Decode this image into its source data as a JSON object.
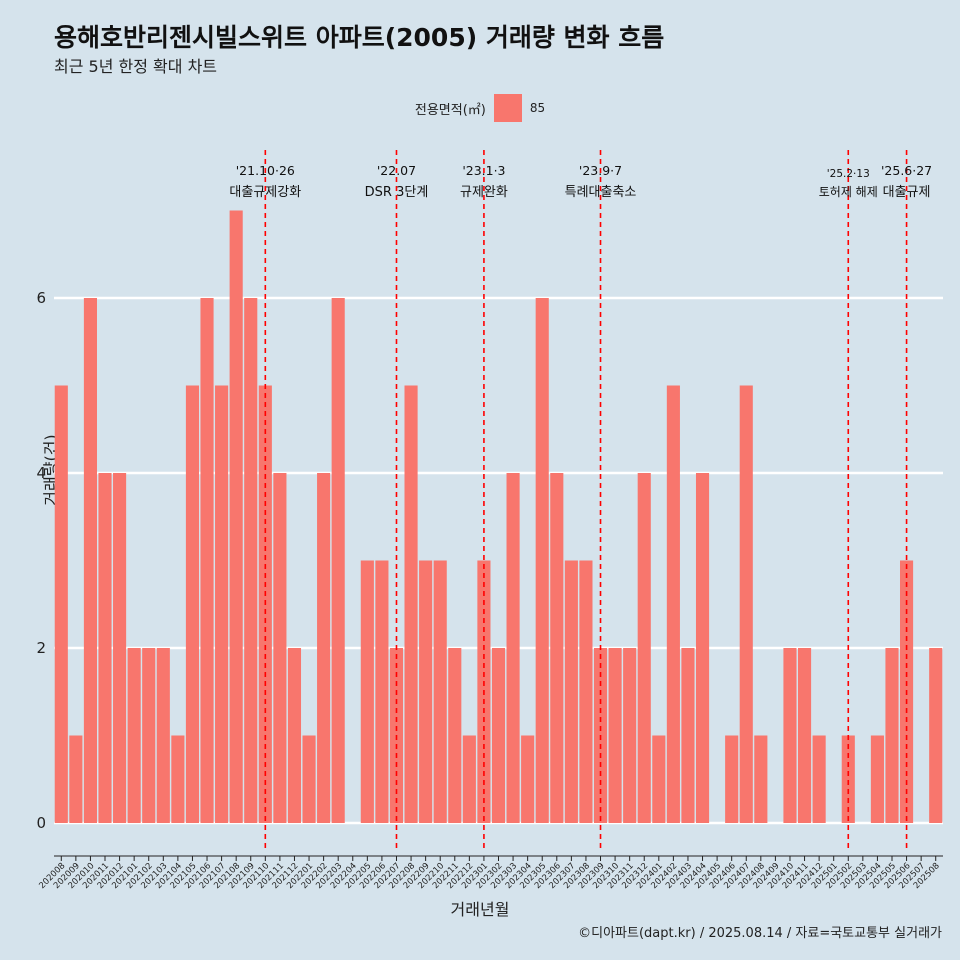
{
  "header": {
    "title": "용해호반리젠시빌스위트 아파트(2005) 거래량 변화 흐름",
    "subtitle": "최근 5년 한정 확대 차트"
  },
  "legend": {
    "title": "전용면적(㎡)",
    "entries": [
      "85"
    ]
  },
  "footer": {
    "caption": "©디아파트(dapt.kr) / 2025.08.14 / 자료=국토교통부 실거래가"
  },
  "colors": {
    "bar": "#f8766d",
    "background": "#d5e3ec",
    "event_line": "#ff0000",
    "grid": "#ffffff"
  },
  "chart_data": {
    "type": "bar",
    "xlabel": "거래년월",
    "ylabel": "거래량(건)",
    "ylim": [
      0,
      7
    ],
    "yticks": [
      0,
      2,
      4,
      6
    ],
    "grid": true,
    "legend_position": "top",
    "categories": [
      "202008",
      "202009",
      "202010",
      "202011",
      "202012",
      "202101",
      "202102",
      "202103",
      "202104",
      "202105",
      "202106",
      "202107",
      "202108",
      "202109",
      "202110",
      "202111",
      "202112",
      "202201",
      "202202",
      "202203",
      "202204",
      "202205",
      "202206",
      "202207",
      "202208",
      "202209",
      "202210",
      "202211",
      "202212",
      "202301",
      "202302",
      "202303",
      "202304",
      "202305",
      "202306",
      "202307",
      "202308",
      "202309",
      "202310",
      "202311",
      "202312",
      "202401",
      "202402",
      "202403",
      "202404",
      "202405",
      "202406",
      "202407",
      "202408",
      "202409",
      "202410",
      "202411",
      "202412",
      "202501",
      "202502",
      "202503",
      "202504",
      "202505",
      "202506",
      "202507",
      "202508"
    ],
    "series": [
      {
        "name": "85",
        "values": [
          5,
          1,
          6,
          4,
          4,
          2,
          2,
          2,
          1,
          5,
          6,
          5,
          7,
          6,
          5,
          4,
          2,
          1,
          4,
          6,
          0,
          3,
          3,
          2,
          5,
          3,
          3,
          2,
          1,
          3,
          2,
          4,
          1,
          6,
          4,
          3,
          3,
          2,
          2,
          2,
          4,
          1,
          5,
          2,
          4,
          0,
          1,
          5,
          1,
          0,
          2,
          2,
          1,
          0,
          1,
          0,
          1,
          2,
          3,
          0,
          2
        ]
      }
    ],
    "events": [
      {
        "category": "202110",
        "date": "'21.10·26",
        "label": "대출규제강화"
      },
      {
        "category": "202207",
        "date": "'22.07",
        "label": "DSR 3단계"
      },
      {
        "category": "202301",
        "date": "'23.1·3",
        "label": "규제완화"
      },
      {
        "category": "202309",
        "date": "'23.9·7",
        "label": "특례대출축소"
      },
      {
        "category": "202502",
        "date": "'25.2·13",
        "label": "토허제 해제"
      },
      {
        "category": "202506",
        "date": "'25.6·27",
        "label": "대출규제"
      }
    ]
  }
}
